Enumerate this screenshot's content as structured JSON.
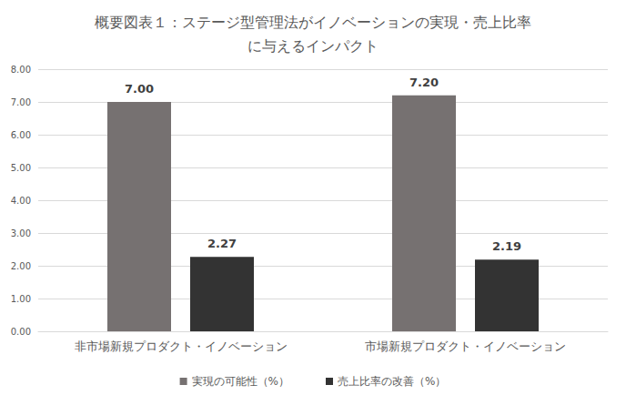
{
  "chart_data": {
    "type": "bar",
    "title": "概要図表１：ステージ型管理法がイノベーションの実現・売上比率\nに与えるインパクト",
    "categories": [
      "非市場新規プロダクト・イノベーション",
      "市場新規プロダクト・イノベーション"
    ],
    "series": [
      {
        "name": "実現の可能性（%）",
        "color": "#767171",
        "values": [
          7.0,
          7.2
        ],
        "value_labels": [
          "7.00",
          "7.20"
        ]
      },
      {
        "name": "売上比率の改善（%）",
        "color": "#333333",
        "values": [
          2.27,
          2.19
        ],
        "value_labels": [
          "2.27",
          "2.19"
        ]
      }
    ],
    "ylim": [
      0,
      8
    ],
    "yticks": [
      {
        "value": 0,
        "label": "0.00"
      },
      {
        "value": 1,
        "label": "1.00"
      },
      {
        "value": 2,
        "label": "2.00"
      },
      {
        "value": 3,
        "label": "3.00"
      },
      {
        "value": 4,
        "label": "4.00"
      },
      {
        "value": 5,
        "label": "5.00"
      },
      {
        "value": 6,
        "label": "6.00"
      },
      {
        "value": 7,
        "label": "7.00"
      },
      {
        "value": 8,
        "label": "8.00"
      }
    ],
    "grid": true,
    "legend": "bottom",
    "data_labels": true
  }
}
